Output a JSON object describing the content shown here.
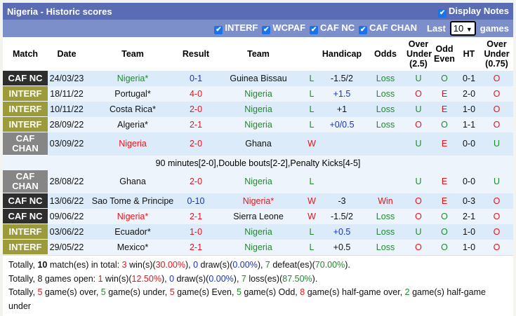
{
  "title": "Nigeria - Historic scores",
  "display_notes": "Display Notes",
  "filters": [
    "INTERF",
    "WCPAF",
    "CAF NC",
    "CAF CHAN"
  ],
  "last_label": "Last",
  "last_value": "10",
  "games_label": "games",
  "badge_colors": {
    "CAF NC": "#2e2e2e",
    "INTERF": "#9b9b3c",
    "CAF CHAN": "#868686"
  },
  "headers": [
    "Match",
    "Date",
    "Team",
    "Result",
    "Team",
    "",
    "Handicap",
    "Odds",
    "Over Under (2.5)",
    "Odd Even",
    "HT",
    "Over Under (0.75)"
  ],
  "rows": [
    {
      "match": "CAF NC",
      "date": "24/03/23",
      "home": "Nigeria*",
      "home_c": "green",
      "result": "0-1",
      "result_c": "blue",
      "away": "Guinea Bissau",
      "away_c": "black",
      "wl": "L",
      "wl_c": "green",
      "hcp": "-1.5/2",
      "hcp_c": "black",
      "odds": "Loss",
      "odds_c": "green",
      "ou": "U",
      "ou_c": "green",
      "oe": "O",
      "oe_c": "green",
      "ht": "0-1",
      "ou75": "O",
      "ou75_c": "red"
    },
    {
      "match": "INTERF",
      "date": "18/11/22",
      "home": "Portugal*",
      "home_c": "black",
      "result": "4-0",
      "result_c": "red",
      "away": "Nigeria",
      "away_c": "green",
      "wl": "L",
      "wl_c": "green",
      "hcp": "+1.5",
      "hcp_c": "blue",
      "odds": "Loss",
      "odds_c": "green",
      "ou": "O",
      "ou_c": "red",
      "oe": "E",
      "oe_c": "red",
      "ht": "2-0",
      "ou75": "O",
      "ou75_c": "red"
    },
    {
      "match": "INTERF",
      "date": "10/11/22",
      "home": "Costa Rica*",
      "home_c": "black",
      "result": "2-0",
      "result_c": "red",
      "away": "Nigeria",
      "away_c": "green",
      "wl": "L",
      "wl_c": "green",
      "hcp": "+1",
      "hcp_c": "black",
      "odds": "Loss",
      "odds_c": "green",
      "ou": "U",
      "ou_c": "green",
      "oe": "E",
      "oe_c": "red",
      "ht": "1-0",
      "ou75": "O",
      "ou75_c": "red"
    },
    {
      "match": "INTERF",
      "date": "28/09/22",
      "home": "Algeria*",
      "home_c": "black",
      "result": "2-1",
      "result_c": "red",
      "away": "Nigeria",
      "away_c": "green",
      "wl": "L",
      "wl_c": "green",
      "hcp": "+0/0.5",
      "hcp_c": "blue",
      "odds": "Loss",
      "odds_c": "green",
      "ou": "O",
      "ou_c": "red",
      "oe": "O",
      "oe_c": "green",
      "ht": "1-1",
      "ou75": "O",
      "ou75_c": "red"
    },
    {
      "match": "CAF CHAN",
      "date": "03/09/22",
      "home": "Nigeria",
      "home_c": "red",
      "result": "2-0",
      "result_c": "red",
      "away": "Ghana",
      "away_c": "black",
      "wl": "W",
      "wl_c": "red",
      "hcp": "",
      "hcp_c": "black",
      "odds": "",
      "odds_c": "green",
      "ou": "U",
      "ou_c": "green",
      "oe": "E",
      "oe_c": "red",
      "ht": "0-0",
      "ou75": "U",
      "ou75_c": "green",
      "note": "90 minutes[2-0],Double bouts[2-2],Penalty Kicks[4-5]"
    },
    {
      "match": "CAF CHAN",
      "date": "28/08/22",
      "home": "Ghana",
      "home_c": "black",
      "result": "2-0",
      "result_c": "red",
      "away": "Nigeria",
      "away_c": "green",
      "wl": "L",
      "wl_c": "green",
      "hcp": "",
      "hcp_c": "black",
      "odds": "",
      "odds_c": "green",
      "ou": "U",
      "ou_c": "green",
      "oe": "E",
      "oe_c": "red",
      "ht": "0-0",
      "ou75": "U",
      "ou75_c": "green"
    },
    {
      "match": "CAF NC",
      "date": "13/06/22",
      "home": "Sao Tome & Principe",
      "home_c": "black",
      "result": "0-10",
      "result_c": "blue",
      "away": "Nigeria*",
      "away_c": "red",
      "wl": "W",
      "wl_c": "red",
      "hcp": "-3",
      "hcp_c": "black",
      "odds": "Win",
      "odds_c": "red",
      "ou": "O",
      "ou_c": "red",
      "oe": "E",
      "oe_c": "red",
      "ht": "0-3",
      "ou75": "O",
      "ou75_c": "red"
    },
    {
      "match": "CAF NC",
      "date": "09/06/22",
      "home": "Nigeria*",
      "home_c": "red",
      "result": "2-1",
      "result_c": "red",
      "away": "Sierra Leone",
      "away_c": "black",
      "wl": "W",
      "wl_c": "red",
      "hcp": "-1.5/2",
      "hcp_c": "black",
      "odds": "Loss",
      "odds_c": "green",
      "ou": "O",
      "ou_c": "red",
      "oe": "O",
      "oe_c": "green",
      "ht": "2-1",
      "ou75": "O",
      "ou75_c": "red"
    },
    {
      "match": "INTERF",
      "date": "03/06/22",
      "home": "Ecuador*",
      "home_c": "black",
      "result": "1-0",
      "result_c": "red",
      "away": "Nigeria",
      "away_c": "green",
      "wl": "L",
      "wl_c": "green",
      "hcp": "+0.5",
      "hcp_c": "blue",
      "odds": "Loss",
      "odds_c": "green",
      "ou": "U",
      "ou_c": "green",
      "oe": "O",
      "oe_c": "green",
      "ht": "1-0",
      "ou75": "O",
      "ou75_c": "red"
    },
    {
      "match": "INTERF",
      "date": "29/05/22",
      "home": "Mexico*",
      "home_c": "black",
      "result": "2-1",
      "result_c": "red",
      "away": "Nigeria",
      "away_c": "green",
      "wl": "L",
      "wl_c": "green",
      "hcp": "+0.5",
      "hcp_c": "black",
      "odds": "Loss",
      "odds_c": "green",
      "ou": "O",
      "ou_c": "red",
      "oe": "O",
      "oe_c": "green",
      "ht": "1-0",
      "ou75": "O",
      "ou75_c": "red"
    }
  ],
  "summary": [
    [
      [
        "Totally, ",
        ""
      ],
      [
        "10",
        "b"
      ],
      [
        " match(es) in total: ",
        ""
      ],
      [
        "3",
        "red"
      ],
      [
        " win(s)(",
        ""
      ],
      [
        "30.00%",
        "red"
      ],
      [
        "), ",
        ""
      ],
      [
        "0",
        "blue"
      ],
      [
        " draw(s)(",
        ""
      ],
      [
        "0.00%",
        "blue"
      ],
      [
        "), ",
        ""
      ],
      [
        "7",
        "green"
      ],
      [
        " defeat(es)(",
        ""
      ],
      [
        "70.00%",
        "green"
      ],
      [
        ").",
        ""
      ]
    ],
    [
      [
        "Totally, 8 games open: ",
        ""
      ],
      [
        "1",
        "red"
      ],
      [
        " win(s)(",
        ""
      ],
      [
        "12.50%",
        "red"
      ],
      [
        "), ",
        ""
      ],
      [
        "0",
        "blue"
      ],
      [
        " draw(s)(",
        ""
      ],
      [
        "0.00%",
        "blue"
      ],
      [
        "), ",
        ""
      ],
      [
        "7",
        "green"
      ],
      [
        " loss(es)(",
        ""
      ],
      [
        "87.50%",
        "green"
      ],
      [
        ").",
        ""
      ]
    ],
    [
      [
        "Totally, ",
        ""
      ],
      [
        "5",
        "red"
      ],
      [
        " game(s) over, ",
        ""
      ],
      [
        "5",
        "green"
      ],
      [
        " game(s) under, ",
        ""
      ],
      [
        "5",
        "red"
      ],
      [
        " game(s) Even, ",
        ""
      ],
      [
        "5",
        "green"
      ],
      [
        " game(s) Odd, ",
        ""
      ],
      [
        "8",
        "red"
      ],
      [
        " game(s) half-game over, ",
        ""
      ],
      [
        "2",
        "green"
      ],
      [
        " game(s) half-game under",
        ""
      ]
    ]
  ]
}
